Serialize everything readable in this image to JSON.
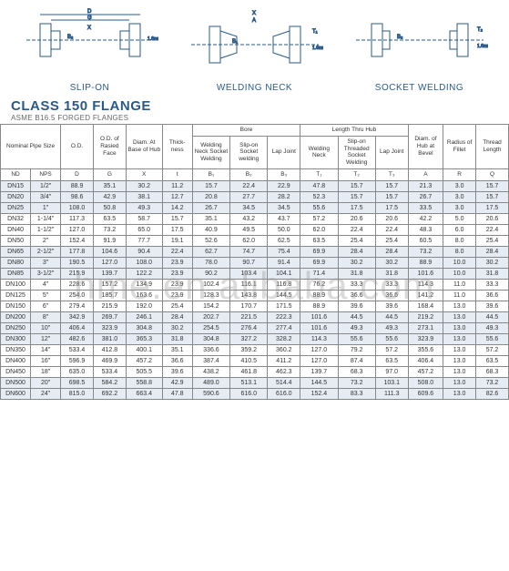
{
  "diagrams": [
    {
      "label": "SLIP-ON"
    },
    {
      "label": "WELDING NECK"
    },
    {
      "label": "SOCKET WELDING"
    }
  ],
  "title": "CLASS 150 FLANGE",
  "subtitle": "ASME B16.5 FORGED FLANGES",
  "watermark": "hme.en.alibaba.com",
  "colors": {
    "heading": "#2a5a8a",
    "band": "rgba(180,200,220,0.35)",
    "border": "#888"
  },
  "headers": {
    "groupNominal": "Nominal Pipe Size",
    "od": "O.D.",
    "odRaised": "O.D. of Rasied Face",
    "diamBase": "Diam. At Base of Hub",
    "thick": "Thick-ness",
    "bore": "Bore",
    "bore1": "Welding Neck Socket Welding",
    "bore2": "Slip-on Socket welding",
    "bore3": "Lap Joint",
    "lth": "Length Thru Hub",
    "lth1": "Welding Neck",
    "lth2": "Slip-on Threaded Socket Welding",
    "lth3": "Lap Joint",
    "diamBevel": "Diam. of Hub at Bevel",
    "radius": "Radius of Fillet",
    "thread": "Thread Length",
    "nd": "ND",
    "nps": "NPS",
    "D": "D",
    "G": "G",
    "X": "X",
    "t": "t",
    "B1": "B₁",
    "B2": "B₂",
    "B3": "B₃",
    "T1": "T₁",
    "T2": "T₂",
    "T3": "T₃",
    "A": "A",
    "R": "R",
    "Q": "Q"
  },
  "rows": [
    {
      "nd": "DN15",
      "nps": "1/2\"",
      "D": "88.9",
      "G": "35.1",
      "X": "30.2",
      "t": "11.2",
      "B1": "15.7",
      "B2": "22.4",
      "B3": "22.9",
      "T1": "47.8",
      "T2": "15.7",
      "T3": "15.7",
      "A": "21.3",
      "R": "3.0",
      "Q": "15.7"
    },
    {
      "nd": "DN20",
      "nps": "3/4\"",
      "D": "98.6",
      "G": "42.9",
      "X": "38.1",
      "t": "12.7",
      "B1": "20.8",
      "B2": "27.7",
      "B3": "28.2",
      "T1": "52.3",
      "T2": "15.7",
      "T3": "15.7",
      "A": "26.7",
      "R": "3.0",
      "Q": "15.7"
    },
    {
      "nd": "DN25",
      "nps": "1\"",
      "D": "108.0",
      "G": "50.8",
      "X": "49.3",
      "t": "14.2",
      "B1": "26.7",
      "B2": "34.5",
      "B3": "34.5",
      "T1": "55.6",
      "T2": "17.5",
      "T3": "17.5",
      "A": "33.5",
      "R": "3.0",
      "Q": "17.5"
    },
    {
      "nd": "DN32",
      "nps": "1-1/4\"",
      "D": "117.3",
      "G": "63.5",
      "X": "58.7",
      "t": "15.7",
      "B1": "35.1",
      "B2": "43.2",
      "B3": "43.7",
      "T1": "57.2",
      "T2": "20.6",
      "T3": "20.6",
      "A": "42.2",
      "R": "5.0",
      "Q": "20.6"
    },
    {
      "nd": "DN40",
      "nps": "1-1/2\"",
      "D": "127.0",
      "G": "73.2",
      "X": "65.0",
      "t": "17.5",
      "B1": "40.9",
      "B2": "49.5",
      "B3": "50.0",
      "T1": "62.0",
      "T2": "22.4",
      "T3": "22.4",
      "A": "48.3",
      "R": "6.0",
      "Q": "22.4"
    },
    {
      "nd": "DN50",
      "nps": "2\"",
      "D": "152.4",
      "G": "91.9",
      "X": "77.7",
      "t": "19.1",
      "B1": "52.6",
      "B2": "62.0",
      "B3": "62.5",
      "T1": "63.5",
      "T2": "25.4",
      "T3": "25.4",
      "A": "60.5",
      "R": "8.0",
      "Q": "25.4"
    },
    {
      "nd": "DN65",
      "nps": "2-1/2\"",
      "D": "177.8",
      "G": "104.6",
      "X": "90.4",
      "t": "22.4",
      "B1": "62.7",
      "B2": "74.7",
      "B3": "75.4",
      "T1": "69.9",
      "T2": "28.4",
      "T3": "28.4",
      "A": "73.2",
      "R": "8.0",
      "Q": "28.4"
    },
    {
      "nd": "DN80",
      "nps": "3\"",
      "D": "190.5",
      "G": "127.0",
      "X": "108.0",
      "t": "23.9",
      "B1": "78.0",
      "B2": "90.7",
      "B3": "91.4",
      "T1": "69.9",
      "T2": "30.2",
      "T3": "30.2",
      "A": "88.9",
      "R": "10.0",
      "Q": "30.2"
    },
    {
      "nd": "DN85",
      "nps": "3-1/2\"",
      "D": "215.9",
      "G": "139.7",
      "X": "122.2",
      "t": "23.9",
      "B1": "90.2",
      "B2": "103.4",
      "B3": "104.1",
      "T1": "71.4",
      "T2": "31.8",
      "T3": "31.8",
      "A": "101.6",
      "R": "10.0",
      "Q": "31.8"
    },
    {
      "nd": "DN100",
      "nps": "4\"",
      "D": "228.6",
      "G": "157.2",
      "X": "134.9",
      "t": "23.9",
      "B1": "102.4",
      "B2": "116.1",
      "B3": "116.8",
      "T1": "76.2",
      "T2": "33.3",
      "T3": "33.3",
      "A": "114.3",
      "R": "11.0",
      "Q": "33.3"
    },
    {
      "nd": "DN125",
      "nps": "5\"",
      "D": "254.0",
      "G": "185.7",
      "X": "163.6",
      "t": "23.9",
      "B1": "128.3",
      "B2": "143.8",
      "B3": "144.5",
      "T1": "88.9",
      "T2": "36.6",
      "T3": "36.6",
      "A": "141.2",
      "R": "11.0",
      "Q": "36.6"
    },
    {
      "nd": "DN150",
      "nps": "6\"",
      "D": "279.4",
      "G": "215.9",
      "X": "192.0",
      "t": "25.4",
      "B1": "154.2",
      "B2": "170.7",
      "B3": "171.5",
      "T1": "88.9",
      "T2": "39.6",
      "T3": "39.6",
      "A": "168.4",
      "R": "13.0",
      "Q": "39.6"
    },
    {
      "nd": "DN200",
      "nps": "8\"",
      "D": "342.9",
      "G": "269.7",
      "X": "246.1",
      "t": "28.4",
      "B1": "202.7",
      "B2": "221.5",
      "B3": "222.3",
      "T1": "101.6",
      "T2": "44.5",
      "T3": "44.5",
      "A": "219.2",
      "R": "13.0",
      "Q": "44.5"
    },
    {
      "nd": "DN250",
      "nps": "10\"",
      "D": "406.4",
      "G": "323.9",
      "X": "304.8",
      "t": "30.2",
      "B1": "254.5",
      "B2": "276.4",
      "B3": "277.4",
      "T1": "101.6",
      "T2": "49.3",
      "T3": "49.3",
      "A": "273.1",
      "R": "13.0",
      "Q": "49.3"
    },
    {
      "nd": "DN300",
      "nps": "12\"",
      "D": "482.6",
      "G": "381.0",
      "X": "365.3",
      "t": "31.8",
      "B1": "304.8",
      "B2": "327.2",
      "B3": "328.2",
      "T1": "114.3",
      "T2": "55.6",
      "T3": "55.6",
      "A": "323.9",
      "R": "13.0",
      "Q": "55.6"
    },
    {
      "nd": "DN350",
      "nps": "14\"",
      "D": "533.4",
      "G": "412.8",
      "X": "400.1",
      "t": "35.1",
      "B1": "336.6",
      "B2": "359.2",
      "B3": "360.2",
      "T1": "127.0",
      "T2": "79.2",
      "T3": "57.2",
      "A": "355.6",
      "R": "13.0",
      "Q": "57.2"
    },
    {
      "nd": "DN400",
      "nps": "16\"",
      "D": "596.9",
      "G": "469.9",
      "X": "457.2",
      "t": "36.6",
      "B1": "387.4",
      "B2": "410.5",
      "B3": "411.2",
      "T1": "127.0",
      "T2": "87.4",
      "T3": "63.5",
      "A": "406.4",
      "R": "13.0",
      "Q": "63.5"
    },
    {
      "nd": "DN450",
      "nps": "18\"",
      "D": "635.0",
      "G": "533.4",
      "X": "505.5",
      "t": "39.6",
      "B1": "438.2",
      "B2": "461.8",
      "B3": "462.3",
      "T1": "139.7",
      "T2": "68.3",
      "T3": "97.0",
      "A": "457.2",
      "R": "13.0",
      "Q": "68.3"
    },
    {
      "nd": "DN500",
      "nps": "20\"",
      "D": "698.5",
      "G": "584.2",
      "X": "558.8",
      "t": "42.9",
      "B1": "489.0",
      "B2": "513.1",
      "B3": "514.4",
      "T1": "144.5",
      "T2": "73.2",
      "T3": "103.1",
      "A": "508.0",
      "R": "13.0",
      "Q": "73.2"
    },
    {
      "nd": "DN600",
      "nps": "24\"",
      "D": "815.0",
      "G": "692.2",
      "X": "663.4",
      "t": "47.8",
      "B1": "590.6",
      "B2": "616.0",
      "B3": "616.0",
      "T1": "152.4",
      "T2": "83.3",
      "T3": "111.3",
      "A": "609.6",
      "R": "13.0",
      "Q": "82.6"
    }
  ],
  "bands": [
    [
      0,
      2
    ],
    [
      6,
      8
    ],
    [
      12,
      14
    ],
    [
      18,
      19
    ]
  ]
}
